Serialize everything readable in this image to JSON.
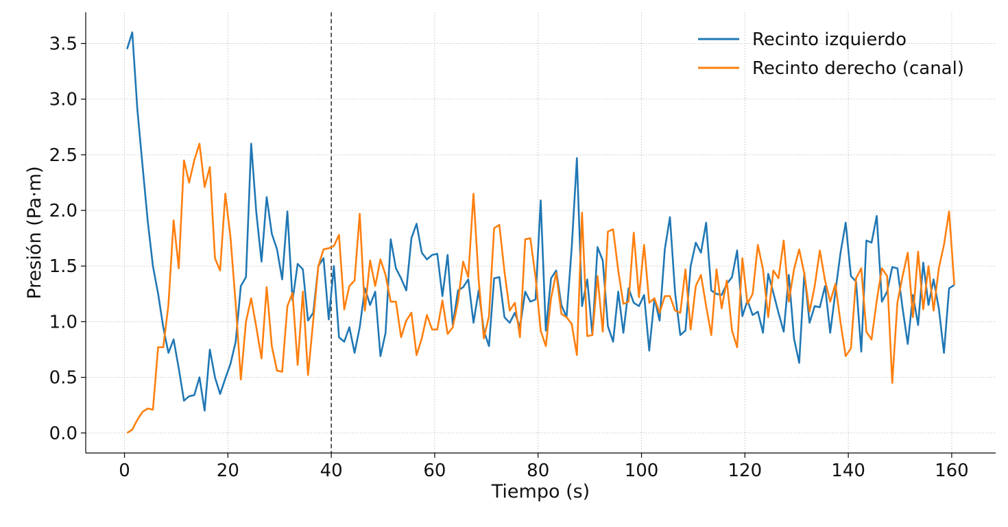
{
  "chart_data": {
    "type": "line",
    "title": "",
    "xlabel": "Tiempo (s)",
    "ylabel": "Presión (Pa·m)",
    "xlim": [
      -7.5,
      168.5
    ],
    "ylim": [
      -0.18,
      3.78
    ],
    "xticks": [
      0,
      20,
      40,
      60,
      80,
      100,
      120,
      140,
      160
    ],
    "yticks": [
      0.0,
      0.5,
      1.0,
      1.5,
      2.0,
      2.5,
      3.0,
      3.5
    ],
    "ytick_labels": [
      "0.0",
      "0.5",
      "1.0",
      "1.5",
      "2.0",
      "2.5",
      "3.0",
      "3.5"
    ],
    "grid": true,
    "legend_position": "top-right",
    "vline": {
      "x": 40,
      "style": "dashed",
      "color": "#333333"
    },
    "series": [
      {
        "name": "Recinto izquierdo",
        "color": "#1f77b4",
        "x": [
          0.5,
          1.5,
          2.5,
          3.5,
          4.5,
          5.5,
          6.5,
          7.5,
          8.5,
          9.5,
          10.5,
          11.5,
          12.5,
          13.5,
          14.5,
          15.5,
          16.5,
          17.5,
          18.5,
          19.5,
          20.5,
          21.5,
          22.5,
          23.5,
          24.5,
          25.5,
          26.5,
          27.5,
          28.5,
          29.5,
          30.5,
          31.5,
          32.5,
          33.5,
          34.5,
          35.5,
          36.5,
          37.5,
          38.5,
          39.5,
          40.5,
          41.5,
          42.5,
          43.5,
          44.5,
          45.5,
          46.5,
          47.5,
          48.5,
          49.5,
          50.5,
          51.5,
          52.5,
          53.5,
          54.5,
          55.5,
          56.5,
          57.5,
          58.5,
          59.5,
          60.5,
          61.5,
          62.5,
          63.5,
          64.5,
          65.5,
          66.5,
          67.5,
          68.5,
          69.5,
          70.5,
          71.5,
          72.5,
          73.5,
          74.5,
          75.5,
          76.5,
          77.5,
          78.5,
          79.5,
          80.5,
          81.5,
          82.5,
          83.5,
          84.5,
          85.5,
          86.5,
          87.5,
          88.5,
          89.5,
          90.5,
          91.5,
          92.5,
          93.5,
          94.5,
          95.5,
          96.5,
          97.5,
          98.5,
          99.5,
          100.5,
          101.5,
          102.5,
          103.5,
          104.5,
          105.5,
          106.5,
          107.5,
          108.5,
          109.5,
          110.5,
          111.5,
          112.5,
          113.5,
          114.5,
          115.5,
          116.5,
          117.5,
          118.5,
          119.5,
          120.5,
          121.5,
          122.5,
          123.5,
          124.5,
          125.5,
          126.5,
          127.5,
          128.5,
          129.5,
          130.5,
          131.5,
          132.5,
          133.5,
          134.5,
          135.5,
          136.5,
          137.5,
          138.5,
          139.5,
          140.5,
          141.5,
          142.5,
          143.5,
          144.5,
          145.5,
          146.5,
          147.5,
          148.5,
          149.5,
          150.5,
          151.5,
          152.5,
          153.5,
          154.5,
          155.5,
          156.5,
          157.5,
          158.5,
          159.5,
          160.5
        ],
        "values": [
          3.45,
          3.6,
          2.9,
          2.4,
          1.9,
          1.5,
          1.25,
          0.95,
          0.72,
          0.84,
          0.58,
          0.29,
          0.33,
          0.34,
          0.5,
          0.2,
          0.75,
          0.5,
          0.35,
          0.49,
          0.62,
          0.82,
          1.32,
          1.4,
          2.6,
          1.98,
          1.54,
          2.12,
          1.79,
          1.65,
          1.38,
          1.99,
          1.19,
          1.52,
          1.47,
          1.01,
          1.08,
          1.5,
          1.57,
          1.02,
          1.5,
          0.86,
          0.82,
          0.95,
          0.72,
          0.95,
          1.3,
          1.15,
          1.27,
          0.69,
          0.9,
          1.74,
          1.48,
          1.39,
          1.28,
          1.75,
          1.88,
          1.62,
          1.56,
          1.6,
          1.61,
          1.23,
          1.6,
          0.97,
          1.28,
          1.31,
          1.38,
          0.99,
          1.28,
          0.92,
          0.78,
          1.39,
          1.4,
          1.04,
          0.99,
          1.08,
          0.95,
          1.27,
          1.18,
          1.2,
          2.09,
          0.92,
          1.39,
          1.46,
          1.15,
          1.04,
          1.66,
          2.47,
          1.14,
          1.38,
          0.88,
          1.67,
          1.55,
          0.96,
          0.82,
          1.27,
          0.9,
          1.3,
          1.17,
          1.14,
          1.24,
          0.74,
          1.21,
          1.01,
          1.65,
          1.94,
          1.26,
          0.88,
          0.92,
          1.5,
          1.71,
          1.62,
          1.89,
          1.28,
          1.25,
          1.24,
          1.34,
          1.4,
          1.64,
          1.05,
          1.19,
          1.06,
          1.09,
          0.9,
          1.43,
          1.26,
          1.08,
          0.91,
          1.42,
          0.85,
          0.63,
          1.44,
          0.99,
          1.14,
          1.13,
          1.32,
          0.9,
          1.27,
          1.62,
          1.89,
          1.41,
          1.36,
          0.73,
          1.73,
          1.71,
          1.95,
          1.18,
          1.27,
          1.49,
          1.48,
          1.12,
          0.8,
          1.24,
          0.97,
          1.53,
          1.15,
          1.38,
          1.12,
          0.72,
          1.3,
          1.33
        ]
      },
      {
        "name": "Recinto derecho (canal)",
        "color": "#ff7f0e",
        "x": [
          0.5,
          1.5,
          2.5,
          3.5,
          4.5,
          5.5,
          6.5,
          7.5,
          8.5,
          9.5,
          10.5,
          11.5,
          12.5,
          13.5,
          14.5,
          15.5,
          16.5,
          17.5,
          18.5,
          19.5,
          20.5,
          21.5,
          22.5,
          23.5,
          24.5,
          25.5,
          26.5,
          27.5,
          28.5,
          29.5,
          30.5,
          31.5,
          32.5,
          33.5,
          34.5,
          35.5,
          36.5,
          37.5,
          38.5,
          39.5,
          40.5,
          41.5,
          42.5,
          43.5,
          44.5,
          45.5,
          46.5,
          47.5,
          48.5,
          49.5,
          50.5,
          51.5,
          52.5,
          53.5,
          54.5,
          55.5,
          56.5,
          57.5,
          58.5,
          59.5,
          60.5,
          61.5,
          62.5,
          63.5,
          64.5,
          65.5,
          66.5,
          67.5,
          68.5,
          69.5,
          70.5,
          71.5,
          72.5,
          73.5,
          74.5,
          75.5,
          76.5,
          77.5,
          78.5,
          79.5,
          80.5,
          81.5,
          82.5,
          83.5,
          84.5,
          85.5,
          86.5,
          87.5,
          88.5,
          89.5,
          90.5,
          91.5,
          92.5,
          93.5,
          94.5,
          95.5,
          96.5,
          97.5,
          98.5,
          99.5,
          100.5,
          101.5,
          102.5,
          103.5,
          104.5,
          105.5,
          106.5,
          107.5,
          108.5,
          109.5,
          110.5,
          111.5,
          112.5,
          113.5,
          114.5,
          115.5,
          116.5,
          117.5,
          118.5,
          119.5,
          120.5,
          121.5,
          122.5,
          123.5,
          124.5,
          125.5,
          126.5,
          127.5,
          128.5,
          129.5,
          130.5,
          131.5,
          132.5,
          133.5,
          134.5,
          135.5,
          136.5,
          137.5,
          138.5,
          139.5,
          140.5,
          141.5,
          142.5,
          143.5,
          144.5,
          145.5,
          146.5,
          147.5,
          148.5,
          149.5,
          150.5,
          151.5,
          152.5,
          153.5,
          154.5,
          155.5,
          156.5,
          157.5,
          158.5,
          159.5,
          160.5
        ],
        "values": [
          0.0,
          0.03,
          0.12,
          0.19,
          0.22,
          0.21,
          0.77,
          0.77,
          1.15,
          1.91,
          1.48,
          2.45,
          2.25,
          2.45,
          2.6,
          2.21,
          2.39,
          1.57,
          1.46,
          2.15,
          1.76,
          1.16,
          0.48,
          1.0,
          1.21,
          0.95,
          0.67,
          1.31,
          0.78,
          0.56,
          0.55,
          1.14,
          1.26,
          0.61,
          1.27,
          0.52,
          1.01,
          1.5,
          1.65,
          1.66,
          1.68,
          1.78,
          1.11,
          1.32,
          1.37,
          1.97,
          1.1,
          1.55,
          1.32,
          1.56,
          1.42,
          1.18,
          1.18,
          0.86,
          1.01,
          1.08,
          0.7,
          0.85,
          1.06,
          0.93,
          0.93,
          1.19,
          0.89,
          0.95,
          1.18,
          1.54,
          1.4,
          2.15,
          1.38,
          0.85,
          1.05,
          1.84,
          1.87,
          1.45,
          1.1,
          1.17,
          0.86,
          1.74,
          1.75,
          1.4,
          0.92,
          0.78,
          1.21,
          1.44,
          1.07,
          1.04,
          0.98,
          0.7,
          1.98,
          0.87,
          0.88,
          1.41,
          0.91,
          1.81,
          1.83,
          1.46,
          1.16,
          1.18,
          1.8,
          1.22,
          1.69,
          1.17,
          1.21,
          1.08,
          1.23,
          1.23,
          1.1,
          1.08,
          1.47,
          0.93,
          1.32,
          1.42,
          1.14,
          0.88,
          1.47,
          1.12,
          1.37,
          0.92,
          0.77,
          1.57,
          1.16,
          1.25,
          1.69,
          1.47,
          1.04,
          1.46,
          1.39,
          1.73,
          1.18,
          1.47,
          1.65,
          1.43,
          1.09,
          1.32,
          1.64,
          1.37,
          1.18,
          1.34,
          0.99,
          0.69,
          0.76,
          1.39,
          1.48,
          0.91,
          0.84,
          1.19,
          1.48,
          1.41,
          0.45,
          1.17,
          1.41,
          1.62,
          1.04,
          1.63,
          1.11,
          1.5,
          1.1,
          1.48,
          1.69,
          1.99,
          1.33
        ]
      }
    ]
  }
}
